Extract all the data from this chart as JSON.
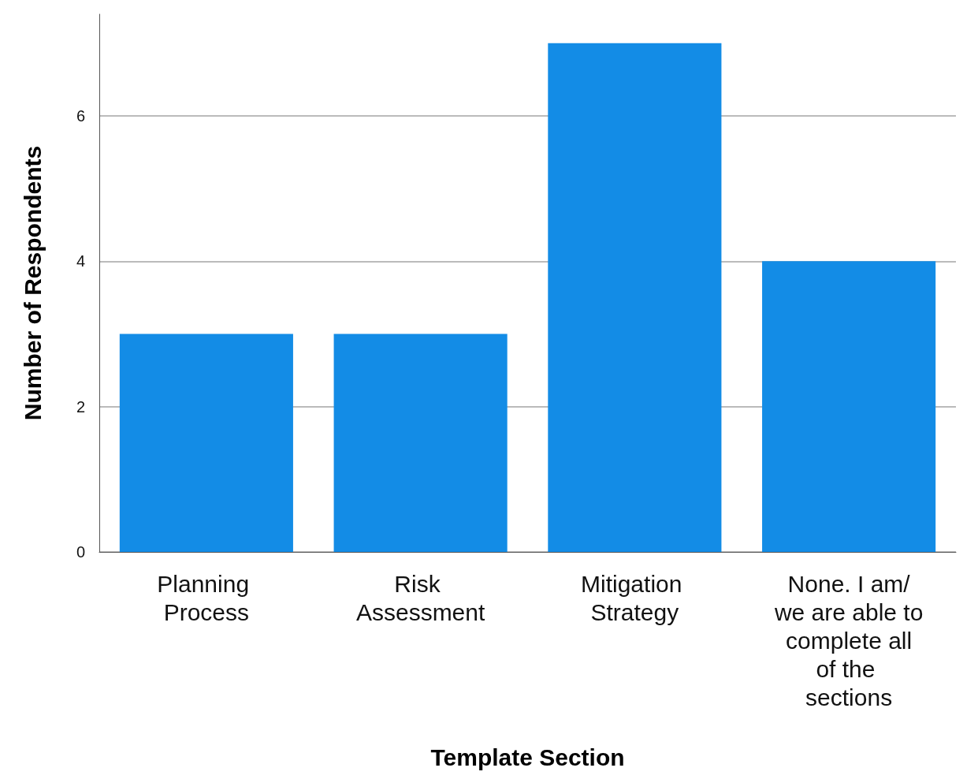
{
  "chart_data": {
    "type": "bar",
    "xlabel": "Template Section",
    "ylabel": "Number of Respondents",
    "categories": [
      "Planning Process",
      "Risk Assessment",
      "Mitigation Strategy",
      "None. I am/we are able to complete all of the sections"
    ],
    "values": [
      3,
      3,
      7,
      4
    ],
    "color": "#138ce6",
    "ylim": [
      0,
      7.4
    ],
    "yticks": [
      0,
      2,
      4,
      6
    ],
    "grid": "y"
  }
}
